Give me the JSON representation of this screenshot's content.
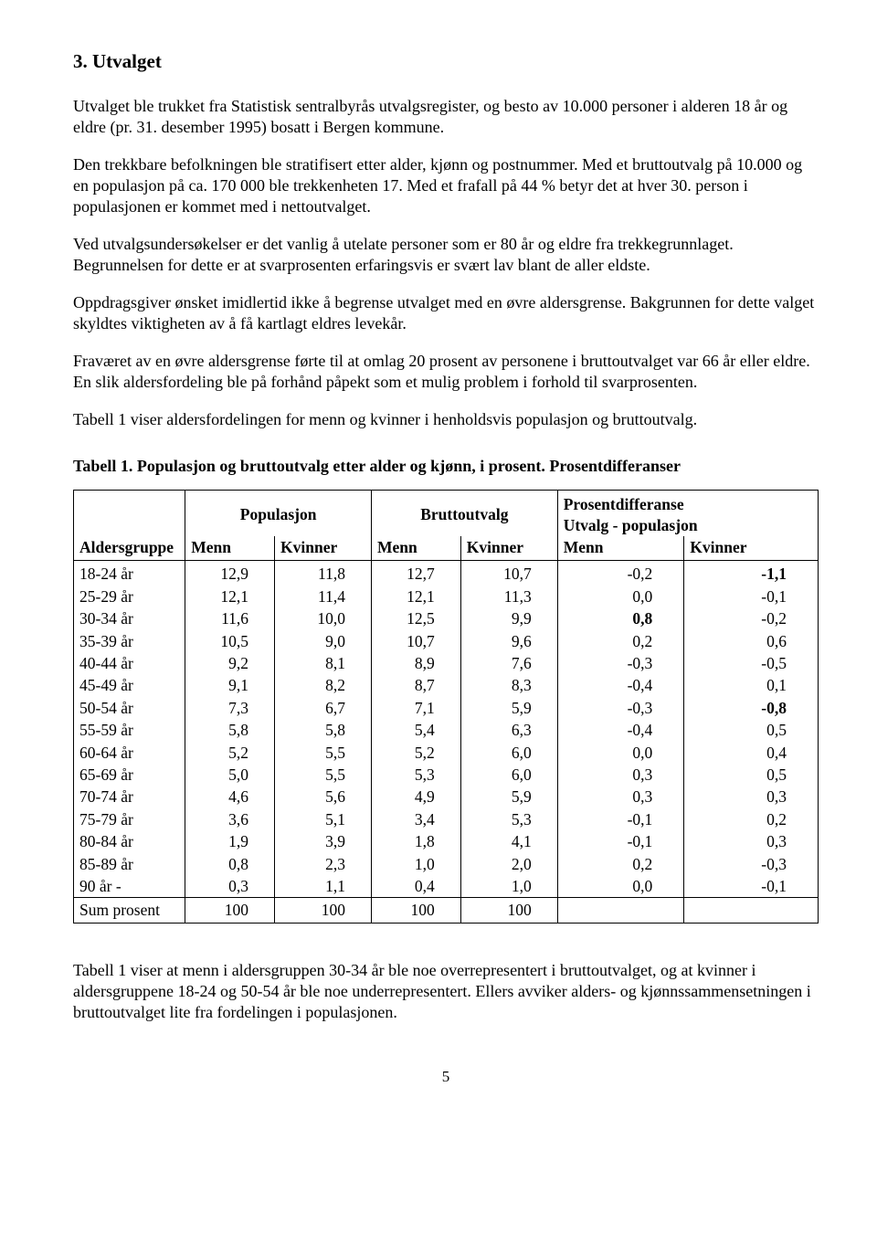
{
  "heading": "3. Utvalget",
  "paragraphs": [
    "Utvalget ble trukket fra Statistisk sentralbyrås utvalgsregister, og besto av 10.000 personer i alderen 18 år og eldre (pr. 31. desember 1995) bosatt i Bergen kommune.",
    "Den trekkbare befolkningen ble stratifisert etter alder, kjønn og postnummer. Med et bruttoutvalg på 10.000 og en populasjon på ca. 170 000 ble trekkenheten 17. Med et frafall på 44 % betyr det at hver 30. person i populasjonen er kommet med i nettoutvalget.",
    "Ved utvalgsundersøkelser er det vanlig å utelate personer som er 80 år og eldre fra trekkegrunnlaget. Begrunnelsen for dette er at svarprosenten erfaringsvis er svært lav blant de aller eldste.",
    "Oppdragsgiver ønsket imidlertid ikke å begrense utvalget med en øvre aldersgrense. Bakgrunnen for dette valget skyldtes viktigheten av å få kartlagt eldres levekår.",
    "Fraværet av en øvre aldersgrense førte til at omlag 20 prosent av personene i bruttoutvalget var 66 år eller eldre. En slik aldersfordeling ble på forhånd påpekt som et mulig problem i forhold til svarprosenten.",
    "Tabell 1 viser aldersfordelingen for menn og kvinner i henholdsvis populasjon og bruttoutvalg."
  ],
  "tableCaption": "Tabell 1. Populasjon og bruttoutvalg etter alder og kjønn, i prosent. Prosentdifferanser",
  "table": {
    "groupHeaders": {
      "blank": "",
      "populasjon": "Populasjon",
      "bruttoutvalg": "Bruttoutvalg",
      "diff1": "Prosentdifferanse",
      "diff2": "Utvalg - populasjon"
    },
    "subHeaders": {
      "aldersgruppe": "Aldersgruppe",
      "menn": "Menn",
      "kvinner": "Kvinner"
    },
    "rows": [
      {
        "label": "18-24 år",
        "pm": "12,9",
        "pk": "11,8",
        "bm": "12,7",
        "bk": "10,7",
        "dm": "-0,2",
        "dk": "-1,1",
        "boldDk": true
      },
      {
        "label": "25-29 år",
        "pm": "12,1",
        "pk": "11,4",
        "bm": "12,1",
        "bk": "11,3",
        "dm": "0,0",
        "dk": "-0,1"
      },
      {
        "label": "30-34 år",
        "pm": "11,6",
        "pk": "10,0",
        "bm": "12,5",
        "bk": "9,9",
        "dm": "0,8",
        "dk": "-0,2",
        "boldDm": true
      },
      {
        "label": "35-39 år",
        "pm": "10,5",
        "pk": "9,0",
        "bm": "10,7",
        "bk": "9,6",
        "dm": "0,2",
        "dk": "0,6"
      },
      {
        "label": "40-44 år",
        "pm": "9,2",
        "pk": "8,1",
        "bm": "8,9",
        "bk": "7,6",
        "dm": "-0,3",
        "dk": "-0,5"
      },
      {
        "label": "45-49 år",
        "pm": "9,1",
        "pk": "8,2",
        "bm": "8,7",
        "bk": "8,3",
        "dm": "-0,4",
        "dk": "0,1"
      },
      {
        "label": "50-54 år",
        "pm": "7,3",
        "pk": "6,7",
        "bm": "7,1",
        "bk": "5,9",
        "dm": "-0,3",
        "dk": "-0,8",
        "boldDk": true
      },
      {
        "label": "55-59 år",
        "pm": "5,8",
        "pk": "5,8",
        "bm": "5,4",
        "bk": "6,3",
        "dm": "-0,4",
        "dk": "0,5"
      },
      {
        "label": "60-64 år",
        "pm": "5,2",
        "pk": "5,5",
        "bm": "5,2",
        "bk": "6,0",
        "dm": "0,0",
        "dk": "0,4"
      },
      {
        "label": "65-69 år",
        "pm": "5,0",
        "pk": "5,5",
        "bm": "5,3",
        "bk": "6,0",
        "dm": "0,3",
        "dk": "0,5"
      },
      {
        "label": "70-74 år",
        "pm": "4,6",
        "pk": "5,6",
        "bm": "4,9",
        "bk": "5,9",
        "dm": "0,3",
        "dk": "0,3"
      },
      {
        "label": "75-79 år",
        "pm": "3,6",
        "pk": "5,1",
        "bm": "3,4",
        "bk": "5,3",
        "dm": "-0,1",
        "dk": "0,2"
      },
      {
        "label": "80-84 år",
        "pm": "1,9",
        "pk": "3,9",
        "bm": "1,8",
        "bk": "4,1",
        "dm": "-0,1",
        "dk": "0,3"
      },
      {
        "label": "85-89 år",
        "pm": "0,8",
        "pk": "2,3",
        "bm": "1,0",
        "bk": "2,0",
        "dm": "0,2",
        "dk": "-0,3"
      },
      {
        "label": "90 år -",
        "pm": "0,3",
        "pk": "1,1",
        "bm": "0,4",
        "bk": "1,0",
        "dm": "0,0",
        "dk": "-0,1"
      }
    ],
    "sumRow": {
      "label": "Sum prosent",
      "pm": "100",
      "pk": "100",
      "bm": "100",
      "bk": "100",
      "dm": "",
      "dk": ""
    }
  },
  "afterTable": "Tabell 1 viser at menn i aldersgruppen 30-34 år ble noe overrepresentert i bruttoutvalget, og at kvinner i aldersgruppene 18-24 og 50-54 år ble noe underrepresentert. Ellers avviker alders- og kjønnssammensetningen i bruttoutvalget lite fra fordelingen i populasjonen.",
  "pageNumber": "5"
}
